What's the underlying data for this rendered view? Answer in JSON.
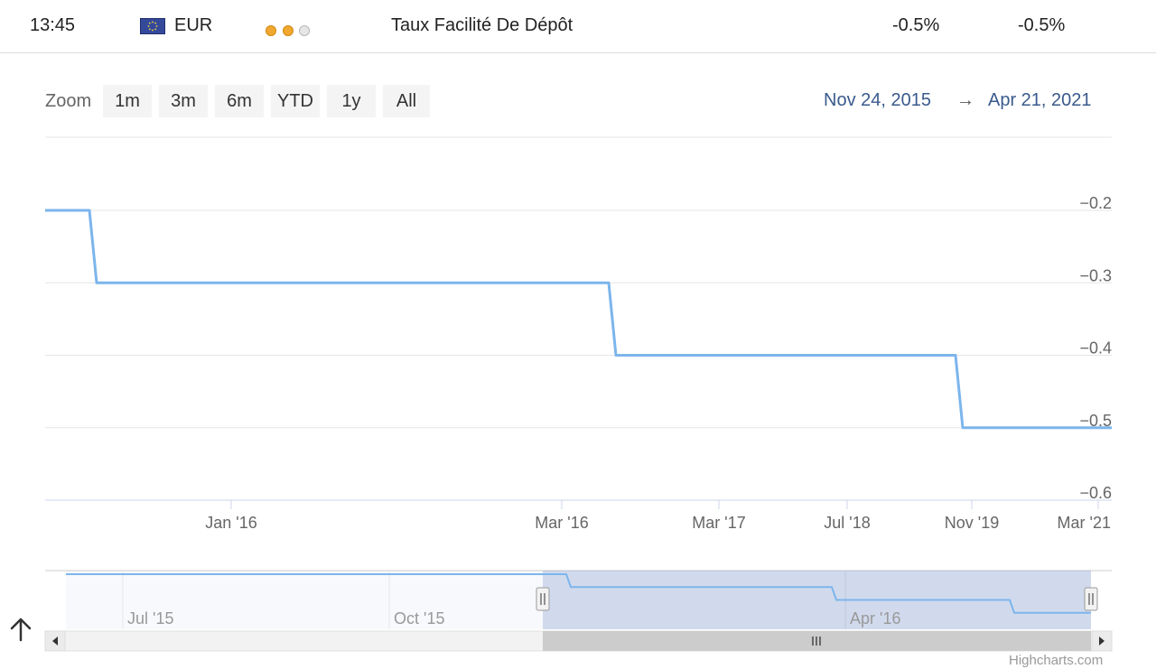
{
  "header": {
    "time": "13:45",
    "currency": "EUR",
    "flag_icon": "eu-flag-icon",
    "importance_on": 2,
    "importance_total": 3,
    "event": "Taux Facilité De Dépôt",
    "actual": "-0.5%",
    "forecast": "-0.5%"
  },
  "controls": {
    "zoom_label": "Zoom",
    "zoom_buttons": [
      "1m",
      "3m",
      "6m",
      "YTD",
      "1y",
      "All"
    ],
    "range_from": "Nov 24, 2015",
    "range_arrow": "→",
    "range_to": "Apr 21, 2021"
  },
  "chart_data": {
    "type": "line",
    "step": true,
    "line_color": "#7cb5ec",
    "x": [
      "Jan '16",
      "Jan '16",
      "Mar '16",
      "Mar '16",
      "Nov '19",
      "Nov '19",
      "Mar '21"
    ],
    "y": [
      -0.2,
      -0.3,
      -0.3,
      -0.4,
      -0.4,
      -0.5,
      -0.5
    ],
    "x_tick_labels": [
      "Jan '16",
      "Mar '16",
      "Mar '17",
      "Jul '18",
      "Nov '19",
      "Mar '21"
    ],
    "y_tick_labels": [
      "-0.2",
      "-0.3",
      "-0.4",
      "-0.5",
      "-0.6"
    ],
    "ylim": [
      -0.6,
      -0.2
    ],
    "grid": true,
    "legend": "none",
    "navigator": {
      "x_tick_labels": [
        "Jul '15",
        "Oct '15",
        "Apr '16"
      ],
      "y": [
        -0.2,
        -0.3,
        -0.4,
        -0.5
      ]
    }
  },
  "credits": "Highcharts.com",
  "icons": {
    "scroll_up": "arrow-up-icon",
    "scroll_left": "triangle-left-icon",
    "scroll_right": "triangle-right-icon",
    "scroll_grip": "grip-icon",
    "handle": "handle-grip-icon"
  }
}
